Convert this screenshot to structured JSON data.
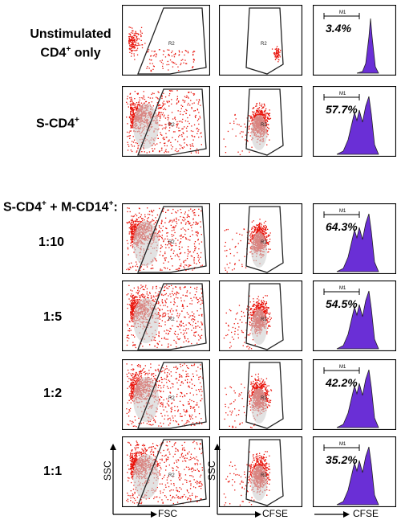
{
  "conditions": [
    {
      "label_html": "Unstimulated<br>CD4<sup>+</sup> only",
      "mi_percent": "3.4%"
    },
    {
      "label_html": "S-CD4<sup>+</sup>",
      "mi_percent": "57.7%"
    },
    {
      "label_html": "1:10",
      "mi_percent": "64.3%"
    },
    {
      "label_html": "1:5",
      "mi_percent": "54.5%"
    },
    {
      "label_html": "1:2",
      "mi_percent": "42.2%"
    },
    {
      "label_html": "1:1",
      "mi_percent": "35.2%"
    }
  ],
  "group_header_html": "S-CD4<sup>+</sup> + M-CD14<sup>+</sup>:",
  "gate_label": "R2",
  "marker_label": "M1",
  "axes": {
    "ssc": "SSC",
    "fsc": "FSC",
    "cfse_scatter": "CFSE",
    "cfse_hist": "CFSE"
  },
  "colors": {
    "dots": "#e8140c",
    "histogram_fill": "#6a2fd6",
    "frame": "#000000"
  }
}
